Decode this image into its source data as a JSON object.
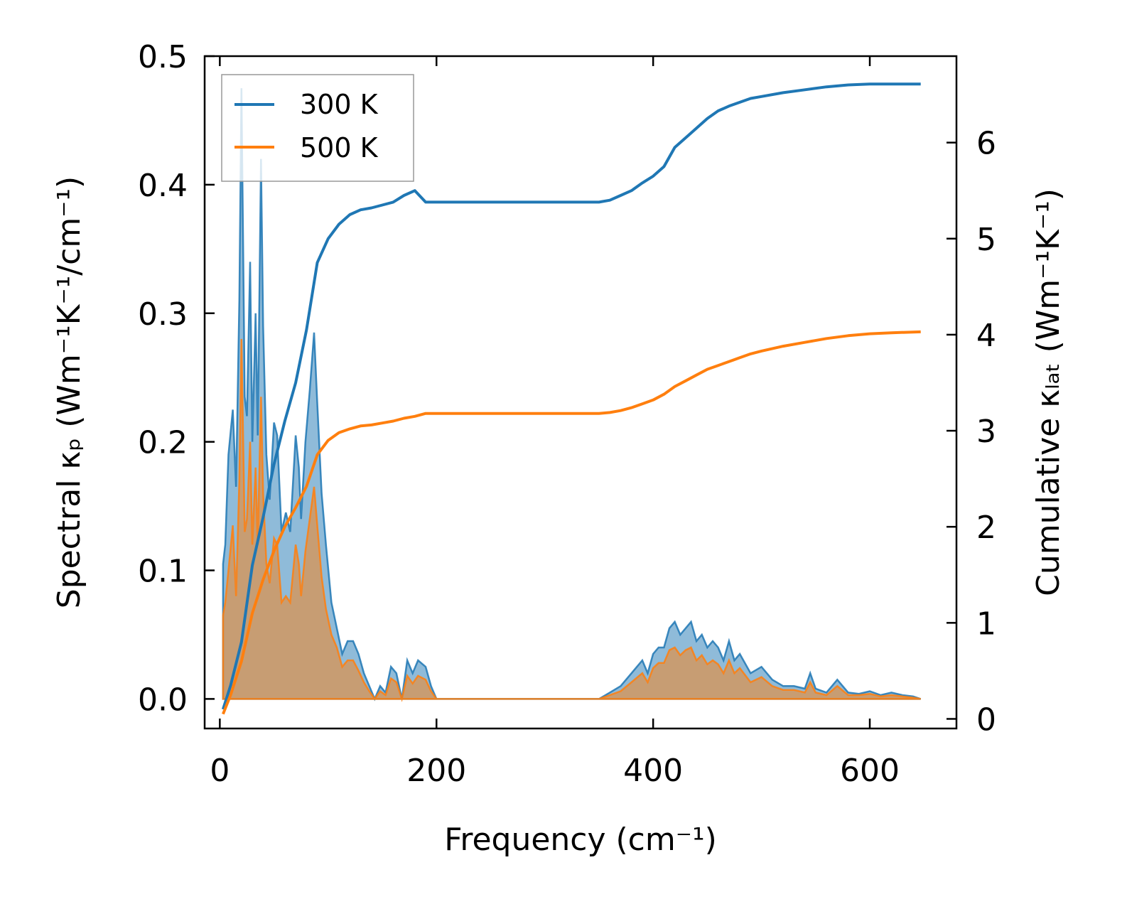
{
  "chart_data": {
    "type": "line",
    "xlabel": "Frequency (cm⁻¹)",
    "ylabel_left": "Spectral κₚ (Wm⁻¹K⁻¹/cm⁻¹)",
    "ylabel_right": "Cumulative κₗₐₜ (Wm⁻¹K⁻¹)",
    "xlim": [
      -14,
      680
    ],
    "ylim_left": [
      -0.023,
      0.5
    ],
    "ylim_right": [
      -0.1,
      6.9
    ],
    "xticks": [
      0,
      200,
      400,
      600
    ],
    "xtick_labels": [
      "0",
      "200",
      "400",
      "600"
    ],
    "yticks_left": [
      0.0,
      0.1,
      0.2,
      0.3,
      0.4,
      0.5
    ],
    "ytick_labels_left": [
      "0.0",
      "0.1",
      "0.2",
      "0.3",
      "0.4",
      "0.5"
    ],
    "yticks_right": [
      0,
      1,
      2,
      3,
      4,
      5,
      6
    ],
    "ytick_labels_right": [
      "0",
      "1",
      "2",
      "3",
      "4",
      "5",
      "6"
    ],
    "legend_position": "top-left",
    "grid": false,
    "series": [
      {
        "name": "300 K",
        "color": "#1f77b4",
        "spectral_x": [
          3,
          5,
          8,
          12,
          15,
          18,
          20,
          23,
          25,
          28,
          30,
          33,
          35,
          38,
          40,
          43,
          46,
          50,
          53,
          57,
          61,
          65,
          70,
          73,
          75,
          79,
          83,
          87,
          90,
          94,
          98,
          103,
          108,
          113,
          118,
          123,
          128,
          133,
          138,
          143,
          148,
          153,
          158,
          163,
          168,
          173,
          178,
          183,
          190,
          195,
          200,
          250,
          300,
          350,
          360,
          370,
          380,
          390,
          395,
          400,
          405,
          410,
          415,
          420,
          425,
          430,
          435,
          440,
          445,
          450,
          455,
          460,
          465,
          470,
          475,
          480,
          490,
          500,
          510,
          520,
          530,
          540,
          545,
          550,
          560,
          570,
          580,
          590,
          600,
          610,
          620,
          630,
          640,
          647
        ],
        "spectral_y": [
          0.105,
          0.12,
          0.19,
          0.225,
          0.165,
          0.31,
          0.475,
          0.235,
          0.22,
          0.34,
          0.2,
          0.3,
          0.205,
          0.42,
          0.29,
          0.19,
          0.155,
          0.215,
          0.205,
          0.13,
          0.145,
          0.13,
          0.205,
          0.18,
          0.14,
          0.2,
          0.24,
          0.285,
          0.23,
          0.16,
          0.12,
          0.075,
          0.055,
          0.035,
          0.045,
          0.045,
          0.035,
          0.02,
          0.01,
          0.0,
          0.01,
          0.005,
          0.025,
          0.02,
          0.0,
          0.03,
          0.02,
          0.03,
          0.025,
          0.01,
          0.0,
          0.0,
          0.0,
          0.0,
          0.005,
          0.01,
          0.02,
          0.03,
          0.02,
          0.035,
          0.04,
          0.04,
          0.055,
          0.06,
          0.05,
          0.055,
          0.06,
          0.045,
          0.05,
          0.04,
          0.045,
          0.04,
          0.03,
          0.045,
          0.03,
          0.035,
          0.02,
          0.025,
          0.015,
          0.01,
          0.01,
          0.008,
          0.02,
          0.008,
          0.005,
          0.015,
          0.005,
          0.004,
          0.006,
          0.003,
          0.005,
          0.003,
          0.002,
          0.0
        ],
        "cumulative_x": [
          3,
          10,
          20,
          30,
          40,
          50,
          60,
          70,
          80,
          90,
          100,
          110,
          120,
          130,
          140,
          150,
          160,
          170,
          180,
          190,
          200,
          250,
          300,
          350,
          360,
          370,
          380,
          390,
          400,
          410,
          420,
          430,
          440,
          450,
          460,
          470,
          480,
          490,
          500,
          520,
          540,
          560,
          580,
          600,
          620,
          647
        ],
        "cumulative_y": [
          0.1,
          0.35,
          0.8,
          1.6,
          2.1,
          2.65,
          3.1,
          3.5,
          4.05,
          4.75,
          5.0,
          5.15,
          5.25,
          5.3,
          5.32,
          5.35,
          5.38,
          5.45,
          5.5,
          5.38,
          5.38,
          5.38,
          5.38,
          5.38,
          5.4,
          5.45,
          5.5,
          5.58,
          5.65,
          5.75,
          5.95,
          6.05,
          6.15,
          6.25,
          6.33,
          6.38,
          6.42,
          6.46,
          6.48,
          6.52,
          6.55,
          6.58,
          6.6,
          6.61,
          6.61,
          6.61
        ]
      },
      {
        "name": "500 K",
        "color": "#ff7f0e",
        "spectral_x": [
          3,
          5,
          8,
          12,
          15,
          18,
          20,
          23,
          25,
          28,
          30,
          33,
          35,
          38,
          40,
          43,
          46,
          50,
          53,
          57,
          61,
          65,
          70,
          73,
          75,
          79,
          83,
          87,
          90,
          94,
          98,
          103,
          108,
          113,
          118,
          123,
          128,
          133,
          138,
          143,
          148,
          153,
          158,
          163,
          168,
          173,
          178,
          183,
          190,
          195,
          200,
          250,
          300,
          350,
          360,
          370,
          380,
          390,
          395,
          400,
          405,
          410,
          415,
          420,
          425,
          430,
          435,
          440,
          445,
          450,
          455,
          460,
          465,
          470,
          475,
          480,
          490,
          500,
          510,
          520,
          530,
          540,
          545,
          550,
          560,
          570,
          580,
          590,
          600,
          610,
          620,
          630,
          640,
          647
        ],
        "spectral_y": [
          0.065,
          0.075,
          0.1,
          0.135,
          0.08,
          0.17,
          0.28,
          0.13,
          0.14,
          0.2,
          0.12,
          0.18,
          0.12,
          0.235,
          0.16,
          0.105,
          0.09,
          0.125,
          0.12,
          0.075,
          0.08,
          0.075,
          0.12,
          0.105,
          0.08,
          0.115,
          0.14,
          0.165,
          0.135,
          0.095,
          0.07,
          0.05,
          0.04,
          0.025,
          0.03,
          0.03,
          0.022,
          0.013,
          0.006,
          0.0,
          0.006,
          0.003,
          0.016,
          0.013,
          0.0,
          0.018,
          0.012,
          0.018,
          0.015,
          0.006,
          0.0,
          0.0,
          0.0,
          0.0,
          0.003,
          0.006,
          0.013,
          0.02,
          0.013,
          0.024,
          0.028,
          0.028,
          0.038,
          0.04,
          0.034,
          0.038,
          0.04,
          0.03,
          0.034,
          0.027,
          0.03,
          0.027,
          0.02,
          0.03,
          0.02,
          0.024,
          0.013,
          0.017,
          0.01,
          0.007,
          0.007,
          0.005,
          0.013,
          0.005,
          0.003,
          0.01,
          0.003,
          0.003,
          0.004,
          0.002,
          0.003,
          0.002,
          0.001,
          0.0
        ],
        "cumulative_x": [
          3,
          10,
          20,
          30,
          40,
          50,
          60,
          70,
          80,
          90,
          100,
          110,
          120,
          130,
          140,
          150,
          160,
          170,
          180,
          190,
          200,
          250,
          300,
          350,
          360,
          370,
          380,
          390,
          400,
          410,
          420,
          430,
          440,
          450,
          460,
          470,
          480,
          490,
          500,
          520,
          540,
          560,
          580,
          600,
          620,
          647
        ],
        "cumulative_y": [
          0.05,
          0.25,
          0.6,
          1.1,
          1.45,
          1.75,
          2.0,
          2.2,
          2.42,
          2.75,
          2.9,
          2.98,
          3.02,
          3.05,
          3.06,
          3.08,
          3.1,
          3.13,
          3.15,
          3.18,
          3.18,
          3.18,
          3.18,
          3.18,
          3.19,
          3.21,
          3.24,
          3.28,
          3.32,
          3.38,
          3.46,
          3.52,
          3.58,
          3.64,
          3.68,
          3.72,
          3.76,
          3.8,
          3.83,
          3.88,
          3.92,
          3.96,
          3.99,
          4.01,
          4.02,
          4.03
        ]
      }
    ]
  }
}
